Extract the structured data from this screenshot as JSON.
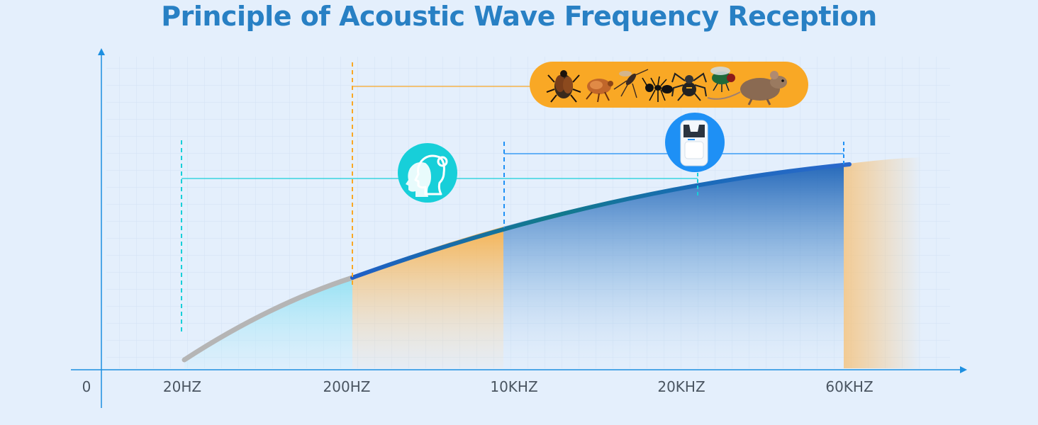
{
  "title": "Principle of Acoustic Wave Frequency Reception",
  "axis": {
    "origin_label": "0",
    "ticks": [
      "20HZ",
      "200HZ",
      "10KHZ",
      "20KHZ",
      "60KHZ"
    ]
  },
  "ranges": [
    {
      "name": "human hearing",
      "from": "20HZ",
      "to": "20KHZ",
      "icon": "human-heads-icon"
    },
    {
      "name": "pests hearing",
      "from": "200HZ",
      "to": "beyond 60KHZ",
      "icon": "pests-icon"
    },
    {
      "name": "repeller output",
      "from": "10KHZ",
      "to": "60KHZ",
      "icon": "repeller-device-icon"
    }
  ],
  "pests": [
    "beetle-icon",
    "flea-icon",
    "mosquito-icon",
    "ant-icon",
    "spider-icon",
    "fly-icon",
    "mouse-icon"
  ],
  "colors": {
    "title": "#2880c4",
    "axis": "#1d8fe0",
    "human": "#17cfd9",
    "pests": "#f9a825",
    "device": "#1e90f5",
    "curve_low": "#b8b8b8",
    "curve_high": "#1f5fc8"
  }
}
